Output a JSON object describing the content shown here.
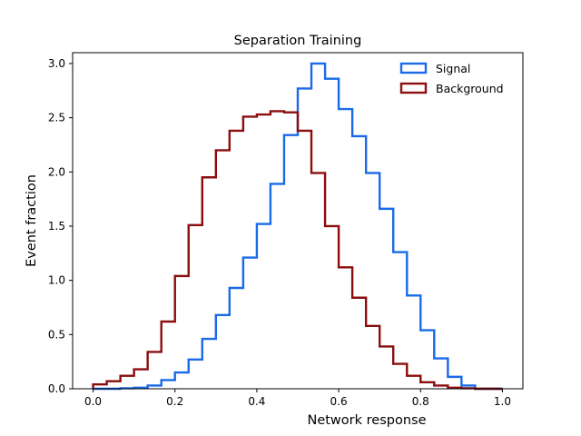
{
  "chart_data": {
    "type": "histogram-step",
    "title": "Separation Training",
    "xlabel": "Network response",
    "ylabel": "Event fraction",
    "xlim": [
      -0.05,
      1.05
    ],
    "ylim": [
      0,
      3.1
    ],
    "xticks": [
      0.0,
      0.2,
      0.4,
      0.6,
      0.8,
      1.0
    ],
    "xtick_labels": [
      "0.0",
      "0.2",
      "0.4",
      "0.6",
      "0.8",
      "1.0"
    ],
    "yticks": [
      0.0,
      0.5,
      1.0,
      1.5,
      2.0,
      2.5,
      3.0
    ],
    "ytick_labels": [
      "0.0",
      "0.5",
      "1.0",
      "1.5",
      "2.0",
      "2.5",
      "3.0"
    ],
    "legend_position": "top-right",
    "bin_edges": [
      0.0,
      0.0333,
      0.0667,
      0.1,
      0.1333,
      0.1667,
      0.2,
      0.2333,
      0.2667,
      0.3,
      0.3333,
      0.3667,
      0.4,
      0.4333,
      0.4667,
      0.5,
      0.5333,
      0.5667,
      0.6,
      0.6333,
      0.6667,
      0.7,
      0.7333,
      0.7667,
      0.8,
      0.8333,
      0.8667,
      0.9,
      0.9333,
      0.9667,
      1.0
    ],
    "series": [
      {
        "name": "Signal",
        "color": "#1a6ae8",
        "values": [
          0.0,
          0.0,
          0.005,
          0.01,
          0.03,
          0.08,
          0.15,
          0.27,
          0.46,
          0.68,
          0.93,
          1.21,
          1.52,
          1.89,
          2.34,
          2.77,
          3.0,
          2.86,
          2.58,
          2.33,
          1.99,
          1.66,
          1.26,
          0.86,
          0.54,
          0.28,
          0.11,
          0.03,
          0.0,
          0.0
        ]
      },
      {
        "name": "Background",
        "color": "#8b0d0d",
        "values": [
          0.04,
          0.07,
          0.12,
          0.18,
          0.34,
          0.62,
          1.04,
          1.51,
          1.95,
          2.2,
          2.38,
          2.51,
          2.53,
          2.56,
          2.55,
          2.38,
          1.99,
          1.5,
          1.12,
          0.84,
          0.58,
          0.39,
          0.23,
          0.12,
          0.06,
          0.03,
          0.01,
          0.005,
          0.0,
          0.0
        ]
      }
    ]
  }
}
